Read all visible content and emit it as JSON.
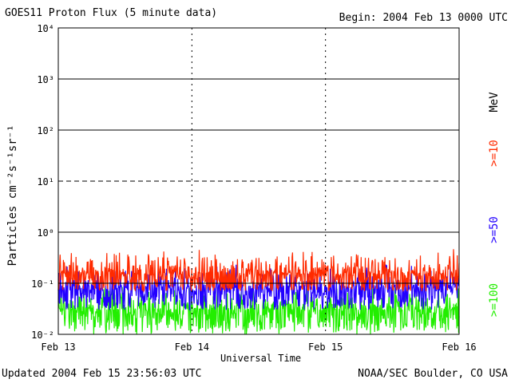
{
  "header": {
    "title": "GOES11 Proton Flux (5 minute data)",
    "begin": "Begin: 2004 Feb 13 0000 UTC"
  },
  "footer": {
    "updated": "Updated 2004 Feb 15 23:56:03 UTC",
    "credit": "NOAA/SEC Boulder, CO USA"
  },
  "chart_data": {
    "type": "line",
    "title": "GOES11 Proton Flux (5 minute data)",
    "xlabel": "Universal Time",
    "ylabel": "Particles cm⁻²s⁻¹sr⁻¹",
    "yscale": "log",
    "ylim": [
      0.01,
      10000
    ],
    "y_ticks": [
      "10⁻²",
      "10⁻¹",
      "10⁰",
      "10¹",
      "10²",
      "10³",
      "10⁴"
    ],
    "x_ticks": [
      "Feb 13",
      "Feb 14",
      "Feb 15",
      "Feb 16"
    ],
    "unit_label": "MeV",
    "grid": true,
    "colors": {
      ">=10": "#ff2a00",
      ">=50": "#2200ff",
      ">=100": "#22ee00"
    },
    "series": [
      {
        "name": ">=10",
        "color": "#ff2a00",
        "typical": 0.15,
        "range": [
          0.07,
          0.5
        ]
      },
      {
        "name": ">=50",
        "color": "#2200ff",
        "typical": 0.08,
        "range": [
          0.03,
          0.25
        ]
      },
      {
        "name": ">=100",
        "color": "#22ee00",
        "typical": 0.03,
        "range": [
          0.01,
          0.1
        ]
      }
    ]
  }
}
